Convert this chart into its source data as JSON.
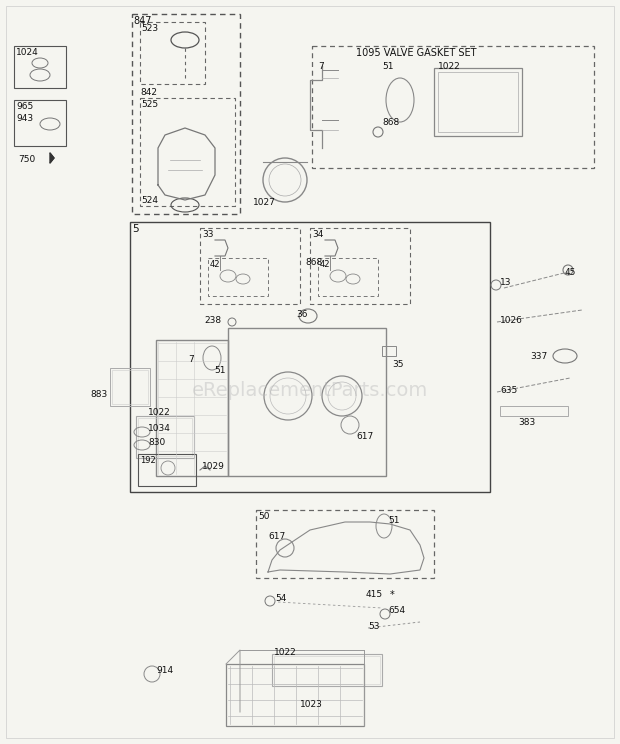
{
  "bg_color": "#f5f5f0",
  "border_color": "#999999",
  "text_color": "#111111",
  "watermark": "eReplacementParts.com",
  "watermark_color": "#bbbbbb",
  "fig_w": 6.2,
  "fig_h": 7.44,
  "dpi": 100
}
